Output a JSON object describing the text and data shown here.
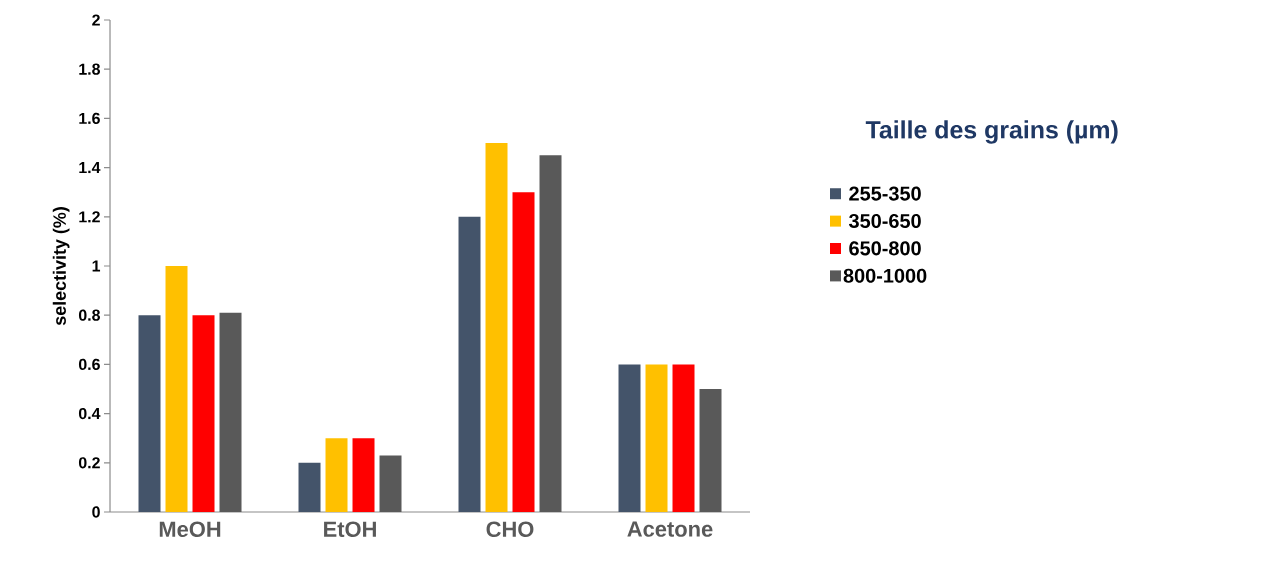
{
  "chart_data": {
    "type": "bar",
    "ylabel": "selectivity  (%)",
    "legend_title": "Taille des grains (µm)",
    "categories": [
      "MeOH",
      "EtOH",
      "CHO",
      "Acetone"
    ],
    "series": [
      {
        "name": "255-350",
        "color": "#44546a",
        "values": [
          0.8,
          0.2,
          1.2,
          0.6
        ]
      },
      {
        "name": "350-650",
        "color": "#ffc000",
        "values": [
          1.0,
          0.3,
          1.5,
          0.6
        ]
      },
      {
        "name": "650-800",
        "color": "#ff0000",
        "values": [
          0.8,
          0.3,
          1.3,
          0.6
        ]
      },
      {
        "name": "800-1000",
        "color": "#595959",
        "values": [
          0.81,
          0.23,
          1.45,
          0.5
        ]
      }
    ],
    "ylim": [
      0,
      2
    ],
    "yticks": [
      0,
      0.2,
      0.4,
      0.6,
      0.8,
      1,
      1.2,
      1.4,
      1.6,
      1.8,
      2
    ],
    "grid": false,
    "legend": "right"
  }
}
